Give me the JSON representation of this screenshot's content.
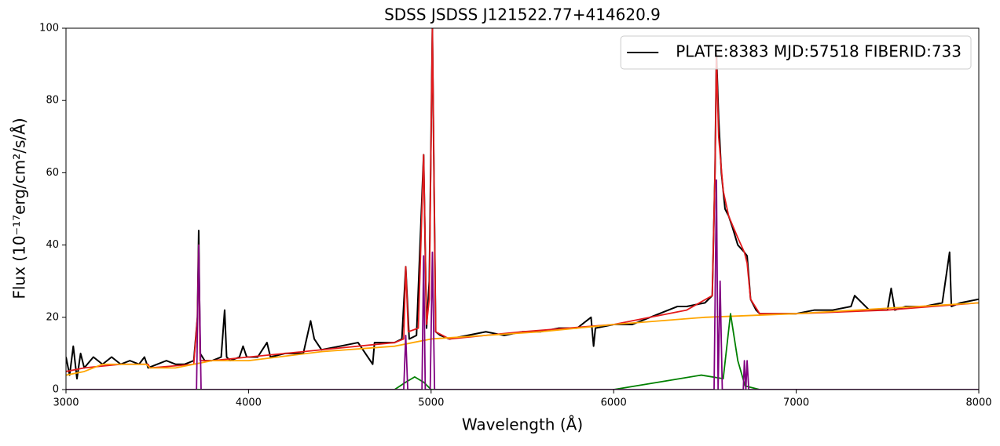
{
  "chart_data": {
    "type": "line",
    "title": "SDSS JSDSS J121522.77+414620.9",
    "xlabel": "Wavelength (Å)",
    "ylabel": "Flux (10⁻¹⁷erg/cm²/s/Å)",
    "xlim": [
      3000,
      8000
    ],
    "xticks": [
      3000,
      4000,
      5000,
      6000,
      7000,
      8000
    ],
    "ylim": [
      0,
      100
    ],
    "yticks": [
      0,
      20,
      40,
      60,
      80,
      100
    ],
    "legend": "upper right",
    "series": [
      {
        "name": "PLATE:8383 MJD:57518 FIBERID:733",
        "color": "#000000",
        "x": [
          3000,
          3020,
          3040,
          3060,
          3080,
          3100,
          3150,
          3200,
          3250,
          3300,
          3350,
          3400,
          3430,
          3450,
          3500,
          3550,
          3600,
          3650,
          3700,
          3720,
          3727,
          3735,
          3760,
          3800,
          3850,
          3869,
          3880,
          3900,
          3950,
          3970,
          3990,
          4050,
          4101,
          4120,
          4200,
          4300,
          4340,
          4360,
          4400,
          4500,
          4600,
          4680,
          4690,
          4750,
          4800,
          4840,
          4861,
          4880,
          4920,
          4959,
          4975,
          4990,
          5007,
          5025,
          5050,
          5100,
          5200,
          5300,
          5400,
          5500,
          5600,
          5700,
          5800,
          5876,
          5890,
          5900,
          6000,
          6100,
          6200,
          6300,
          6350,
          6400,
          6500,
          6540,
          6555,
          6563,
          6575,
          6590,
          6610,
          6630,
          6650,
          6680,
          6716,
          6731,
          6750,
          6780,
          6800,
          6900,
          7000,
          7100,
          7200,
          7300,
          7320,
          7400,
          7500,
          7520,
          7540,
          7600,
          7700,
          7800,
          7840,
          7850,
          7900,
          8000
        ],
        "values": [
          9,
          4,
          12,
          3,
          10,
          6,
          9,
          7,
          9,
          7,
          8,
          7,
          9,
          6,
          7,
          8,
          7,
          7,
          8,
          20,
          44,
          10,
          8,
          8,
          9,
          22,
          9,
          8,
          9,
          12,
          9,
          9,
          13,
          9,
          10,
          10,
          19,
          14,
          11,
          12,
          13,
          7,
          13,
          13,
          13,
          14,
          34,
          14,
          15,
          65,
          17,
          30,
          100,
          16,
          15,
          14,
          15,
          16,
          15,
          16,
          16,
          17,
          17,
          20,
          12,
          17,
          18,
          18,
          20,
          22,
          23,
          23,
          24,
          26,
          60,
          93,
          75,
          60,
          50,
          48,
          45,
          40,
          38,
          37,
          25,
          22,
          21,
          21,
          21,
          22,
          22,
          23,
          26,
          22,
          22,
          28,
          22,
          23,
          23,
          24,
          38,
          23,
          24,
          25
        ]
      },
      {
        "color": "#e41a1c",
        "x": [
          3000,
          3100,
          3300,
          3450,
          3460,
          3700,
          3720,
          3727,
          3735,
          3800,
          4000,
          4400,
          4800,
          4850,
          4861,
          4875,
          4930,
          4959,
          4975,
          4990,
          5007,
          5025,
          5100,
          5500,
          6000,
          6200,
          6400,
          6540,
          6555,
          6563,
          6575,
          6600,
          6630,
          6680,
          6716,
          6731,
          6750,
          6800,
          7000,
          7500,
          8000
        ],
        "values": [
          5,
          6,
          7,
          7,
          6,
          7,
          20,
          40,
          8,
          8,
          9,
          11,
          13,
          14,
          34,
          16,
          17,
          65,
          18,
          25,
          100,
          16,
          14,
          16,
          18,
          20,
          22,
          26,
          60,
          92,
          70,
          55,
          48,
          42,
          38,
          35,
          25,
          21,
          21,
          22,
          24
        ]
      },
      {
        "color": "#ffa500",
        "x": [
          3000,
          3100,
          3200,
          3300,
          3440,
          3460,
          3600,
          3800,
          4000,
          4400,
          4800,
          4900,
          5000,
          5300,
          5600,
          6000,
          6500,
          7000,
          7500,
          8000
        ],
        "values": [
          4,
          5,
          7,
          7,
          7,
          6,
          6,
          8,
          8,
          10.5,
          12,
          13,
          14,
          15,
          16,
          18,
          20,
          21,
          22.5,
          24
        ]
      },
      {
        "color": "#008000",
        "x": [
          3000,
          4800,
          4860,
          4910,
          4960,
          5000,
          6000,
          6300,
          6480,
          6600,
          6640,
          6680,
          6720,
          6800,
          8000
        ],
        "values": [
          0,
          0,
          2,
          3.5,
          2,
          0,
          0,
          2.5,
          4,
          3,
          21,
          8,
          1,
          0,
          0
        ]
      },
      {
        "color": "#800080",
        "x": [
          3000,
          3715,
          3727,
          3740,
          4850,
          4861,
          4872,
          4950,
          4959,
          4968,
          4995,
          5007,
          5019,
          6550,
          6563,
          6572,
          6583,
          6595,
          6710,
          6716,
          6724,
          6731,
          6740,
          8000
        ],
        "values": [
          0,
          0,
          40,
          0,
          0,
          15,
          0,
          0,
          37,
          0,
          0,
          38,
          0,
          0,
          58,
          0,
          30,
          0,
          0,
          8,
          0,
          8,
          0,
          0
        ]
      }
    ]
  }
}
